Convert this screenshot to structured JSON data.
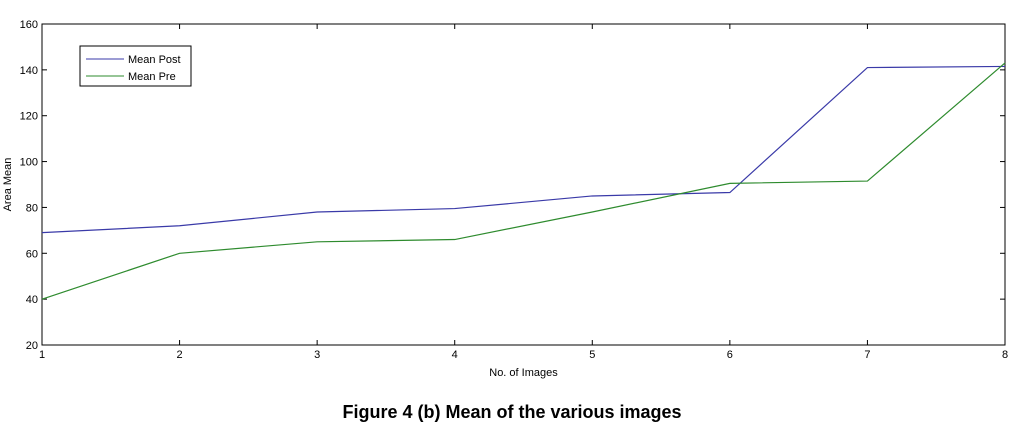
{
  "caption": "Figure 4 (b)  Mean of the various images",
  "chart_data": {
    "type": "line",
    "x": [
      1,
      2,
      3,
      4,
      5,
      6,
      7,
      8
    ],
    "series": [
      {
        "name": "Mean Post",
        "color": "#3a3aa8",
        "values": [
          69,
          72,
          78,
          79.5,
          85,
          86.5,
          141,
          141.5
        ]
      },
      {
        "name": "Mean Pre",
        "color": "#2e8b2e",
        "values": [
          40,
          60,
          65,
          66,
          78,
          90.5,
          91.5,
          143
        ]
      }
    ],
    "xlabel": "No. of Images",
    "ylabel": "Area Mean",
    "xlim": [
      1,
      8
    ],
    "ylim": [
      20,
      160
    ],
    "xticks": [
      1,
      2,
      3,
      4,
      5,
      6,
      7,
      8
    ],
    "yticks": [
      20,
      40,
      60,
      80,
      100,
      120,
      140,
      160
    ],
    "grid": false,
    "legend_position": "top-left"
  }
}
